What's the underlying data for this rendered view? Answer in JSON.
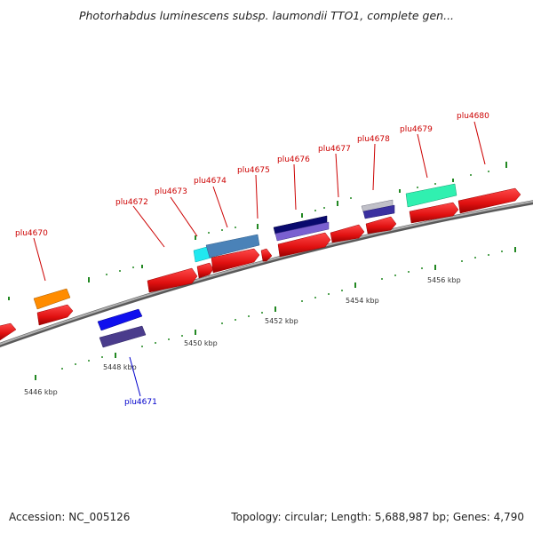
{
  "title": "Photorhabdus luminescens subsp. laumondii TTO1, complete gen...",
  "footer": {
    "accession": "Accession: NC_005126",
    "summary": "Topology: circular; Length: 5,688,987 bp; Genes: 4,790"
  },
  "scale_labels": [
    "5446 kbp",
    "5448 kbp",
    "5450 kbp",
    "5452 kbp",
    "5454 kbp",
    "5456 kbp"
  ],
  "gene_labels": [
    {
      "text": "plu4670",
      "color": "#cc0000"
    },
    {
      "text": "plu4671",
      "color": "#0000cc"
    },
    {
      "text": "plu4672",
      "color": "#cc0000"
    },
    {
      "text": "plu4673",
      "color": "#cc0000"
    },
    {
      "text": "plu4674",
      "color": "#cc0000"
    },
    {
      "text": "plu4675",
      "color": "#cc0000"
    },
    {
      "text": "plu4676",
      "color": "#cc0000"
    },
    {
      "text": "plu4677",
      "color": "#cc0000"
    },
    {
      "text": "plu4678",
      "color": "#cc0000"
    },
    {
      "text": "plu4679",
      "color": "#cc0000"
    },
    {
      "text": "plu4680",
      "color": "#cc0000"
    }
  ],
  "colors": {
    "backbone": "#888888",
    "forward_gene": "#ee1111",
    "tick": "#228822",
    "label_red": "#cc0000",
    "label_blue": "#0000cc"
  }
}
